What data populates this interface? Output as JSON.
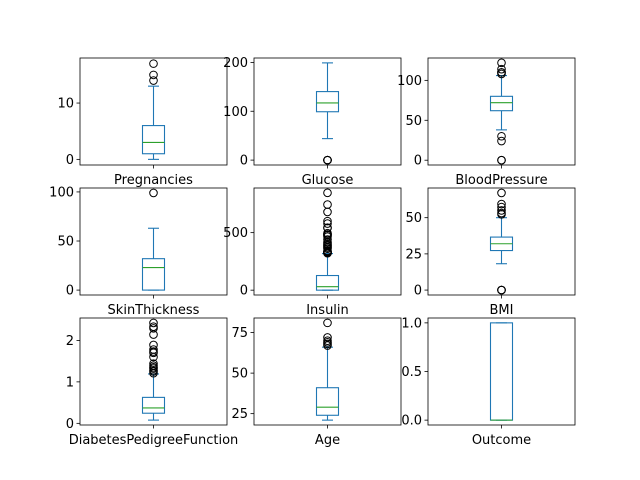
{
  "chart_data": [
    {
      "type": "box",
      "category": "Pregnancies",
      "ylim": [
        -1,
        18
      ],
      "yticks": [
        0,
        10
      ],
      "whislo": 0,
      "q1": 1,
      "median": 3,
      "q3": 6,
      "whishi": 13,
      "fliers": [
        14,
        15,
        17
      ]
    },
    {
      "type": "box",
      "category": "Glucose",
      "ylim": [
        -10,
        209
      ],
      "yticks": [
        0,
        100,
        200
      ],
      "whislo": 44,
      "q1": 99,
      "median": 117,
      "q3": 140.25,
      "whishi": 199,
      "fliers": [
        0,
        0,
        0,
        0,
        0
      ]
    },
    {
      "type": "box",
      "category": "BloodPressure",
      "ylim": [
        -6,
        128
      ],
      "yticks": [
        0,
        50,
        100
      ],
      "whislo": 38,
      "q1": 62,
      "median": 72,
      "q3": 80,
      "whishi": 106,
      "fliers": [
        0,
        0,
        24,
        30,
        108,
        110,
        110,
        114,
        122
      ]
    },
    {
      "type": "box",
      "category": "SkinThickness",
      "ylim": [
        -5,
        104
      ],
      "yticks": [
        0,
        50,
        100
      ],
      "whislo": 0,
      "q1": 0,
      "median": 23,
      "q3": 32,
      "whishi": 63,
      "fliers": [
        99
      ]
    },
    {
      "type": "box",
      "category": "Insulin",
      "ylim": [
        -42,
        888
      ],
      "yticks": [
        0,
        500
      ],
      "whislo": 0,
      "q1": 0,
      "median": 30.5,
      "q3": 127.25,
      "whishi": 318,
      "fliers": [
        321,
        325,
        326,
        328,
        330,
        335,
        342,
        360,
        370,
        375,
        387,
        392,
        402,
        415,
        440,
        465,
        478,
        480,
        485,
        495,
        540,
        543,
        579,
        600,
        680,
        744,
        846
      ]
    },
    {
      "type": "box",
      "category": "BMI",
      "ylim": [
        -3.4,
        70.5
      ],
      "yticks": [
        0,
        25,
        50
      ],
      "whislo": 18.2,
      "q1": 27.3,
      "median": 32,
      "q3": 36.6,
      "whishi": 50,
      "fliers": [
        0,
        0,
        0,
        52.3,
        53.2,
        55,
        57.3,
        59.4,
        67.1
      ]
    },
    {
      "type": "box",
      "category": "DiabetesPedigreeFunction",
      "ylim": [
        -0.04,
        2.54
      ],
      "yticks": [
        0,
        1,
        2
      ],
      "whislo": 0.078,
      "q1": 0.244,
      "median": 0.372,
      "q3": 0.626,
      "whishi": 1.191,
      "fliers": [
        1.21,
        1.25,
        1.28,
        1.32,
        1.35,
        1.39,
        1.44,
        1.6,
        1.7,
        1.73,
        1.78,
        1.89,
        2.14,
        2.29,
        2.33,
        2.42
      ]
    },
    {
      "type": "box",
      "category": "Age",
      "ylim": [
        18,
        84
      ],
      "yticks": [
        25,
        50,
        75
      ],
      "whislo": 21,
      "q1": 24,
      "median": 29,
      "q3": 41,
      "whishi": 66,
      "fliers": [
        67,
        68,
        69,
        70,
        72,
        81
      ]
    },
    {
      "type": "box",
      "category": "Outcome",
      "ylim": [
        -0.05,
        1.05
      ],
      "yticks": [
        0.0,
        0.5,
        1.0
      ],
      "tick_decimals": 1,
      "whislo": 0,
      "q1": 0,
      "median": 0,
      "q3": 1,
      "whishi": 1,
      "fliers": []
    }
  ]
}
